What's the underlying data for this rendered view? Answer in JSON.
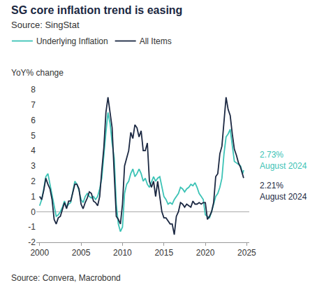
{
  "chart_data": {
    "type": "line",
    "title": "SG core inflation trend is easing",
    "subtitle": "Source: SingStat",
    "y_label": "YoY% change",
    "footer": "Source: Convera, Macrobond",
    "x": [
      2000,
      2000.25,
      2000.5,
      2000.75,
      2001,
      2001.25,
      2001.5,
      2001.75,
      2002,
      2002.25,
      2002.5,
      2002.75,
      2003,
      2003.25,
      2003.5,
      2003.75,
      2004,
      2004.25,
      2004.5,
      2004.75,
      2005,
      2005.25,
      2005.5,
      2005.75,
      2006,
      2006.25,
      2006.5,
      2006.75,
      2007,
      2007.25,
      2007.5,
      2007.75,
      2008,
      2008.25,
      2008.5,
      2008.75,
      2009,
      2009.25,
      2009.5,
      2009.75,
      2010,
      2010.25,
      2010.5,
      2010.75,
      2011,
      2011.25,
      2011.5,
      2011.75,
      2012,
      2012.25,
      2012.5,
      2012.75,
      2013,
      2013.25,
      2013.5,
      2013.75,
      2014,
      2014.25,
      2014.5,
      2014.75,
      2015,
      2015.25,
      2015.5,
      2015.75,
      2016,
      2016.25,
      2016.5,
      2016.75,
      2017,
      2017.25,
      2017.5,
      2017.75,
      2018,
      2018.25,
      2018.5,
      2018.75,
      2019,
      2019.25,
      2019.5,
      2019.75,
      2020,
      2020.25,
      2020.5,
      2020.75,
      2021,
      2021.25,
      2021.5,
      2021.75,
      2022,
      2022.25,
      2022.5,
      2022.75,
      2023,
      2023.25,
      2023.5,
      2023.75,
      2024,
      2024.25,
      2024.5,
      2024.62
    ],
    "series": [
      {
        "name": "Underlying Inflation",
        "color": "#3cc3b6",
        "end_label": [
          "2.73%",
          "August 2024"
        ],
        "values": [
          0.4,
          0.8,
          1.5,
          2.3,
          2.5,
          1.8,
          1.2,
          0.5,
          -0.3,
          -0.2,
          0.0,
          0.3,
          0.7,
          0.3,
          0.5,
          0.6,
          1.4,
          2.0,
          1.8,
          1.4,
          0.8,
          0.6,
          1.0,
          1.2,
          1.0,
          0.9,
          1.0,
          0.8,
          1.0,
          1.5,
          2.2,
          3.8,
          5.2,
          6.5,
          5.8,
          4.5,
          3.5,
          0.5,
          -0.8,
          -1.3,
          -1.0,
          1.2,
          1.8,
          2.0,
          2.5,
          2.8,
          2.3,
          2.5,
          2.8,
          2.5,
          2.0,
          2.2,
          1.8,
          1.6,
          2.0,
          2.3,
          2.0,
          2.2,
          2.3,
          1.6,
          1.0,
          0.8,
          0.5,
          0.6,
          0.5,
          0.8,
          1.0,
          1.2,
          1.6,
          1.5,
          1.3,
          1.5,
          1.6,
          1.8,
          1.7,
          1.9,
          1.6,
          1.2,
          1.0,
          0.8,
          -0.2,
          -0.3,
          -0.4,
          0.0,
          0.5,
          1.0,
          1.2,
          1.6,
          2.2,
          3.8,
          4.9,
          5.1,
          5.4,
          4.3,
          3.3,
          3.2,
          3.1,
          3.0,
          2.5,
          2.73
        ]
      },
      {
        "name": "All Items",
        "color": "#1b2842",
        "end_label": [
          "2.21%",
          "August 2024"
        ],
        "values": [
          1.0,
          0.8,
          1.4,
          2.2,
          1.8,
          1.5,
          0.8,
          -0.5,
          -0.8,
          -0.4,
          -0.3,
          0.2,
          0.6,
          0.2,
          0.7,
          0.7,
          1.3,
          1.8,
          1.8,
          1.5,
          0.5,
          0.2,
          0.6,
          0.9,
          1.3,
          1.2,
          0.7,
          0.6,
          0.4,
          1.0,
          2.7,
          4.2,
          6.5,
          7.5,
          6.5,
          5.5,
          2.5,
          -0.3,
          -0.5,
          -0.8,
          0.5,
          3.0,
          3.5,
          4.0,
          5.2,
          4.8,
          5.7,
          5.5,
          4.9,
          5.3,
          4.0,
          4.0,
          4.5,
          2.0,
          1.6,
          2.0,
          1.0,
          2.0,
          1.0,
          0.0,
          -0.4,
          -0.4,
          -0.6,
          -0.8,
          -0.8,
          -1.5,
          -0.3,
          0.0,
          0.6,
          0.5,
          0.3,
          0.5,
          0.4,
          0.3,
          0.7,
          0.5,
          0.5,
          0.6,
          0.5,
          0.6,
          0.6,
          -0.5,
          -0.3,
          0.0,
          0.6,
          2.3,
          2.5,
          3.8,
          4.3,
          5.8,
          7.5,
          6.7,
          6.3,
          5.1,
          4.1,
          3.7,
          3.2,
          2.9,
          2.4,
          2.21
        ]
      }
    ],
    "xlim": [
      1999.6,
      2025.3
    ],
    "xticks": [
      2000,
      2005,
      2010,
      2015,
      2020,
      2025
    ],
    "ylim": [
      -2,
      8
    ],
    "yticks": [
      -2,
      -1,
      0,
      1,
      2,
      3,
      4,
      5,
      6,
      7,
      8
    ],
    "grid": false,
    "legend": "top-left"
  }
}
